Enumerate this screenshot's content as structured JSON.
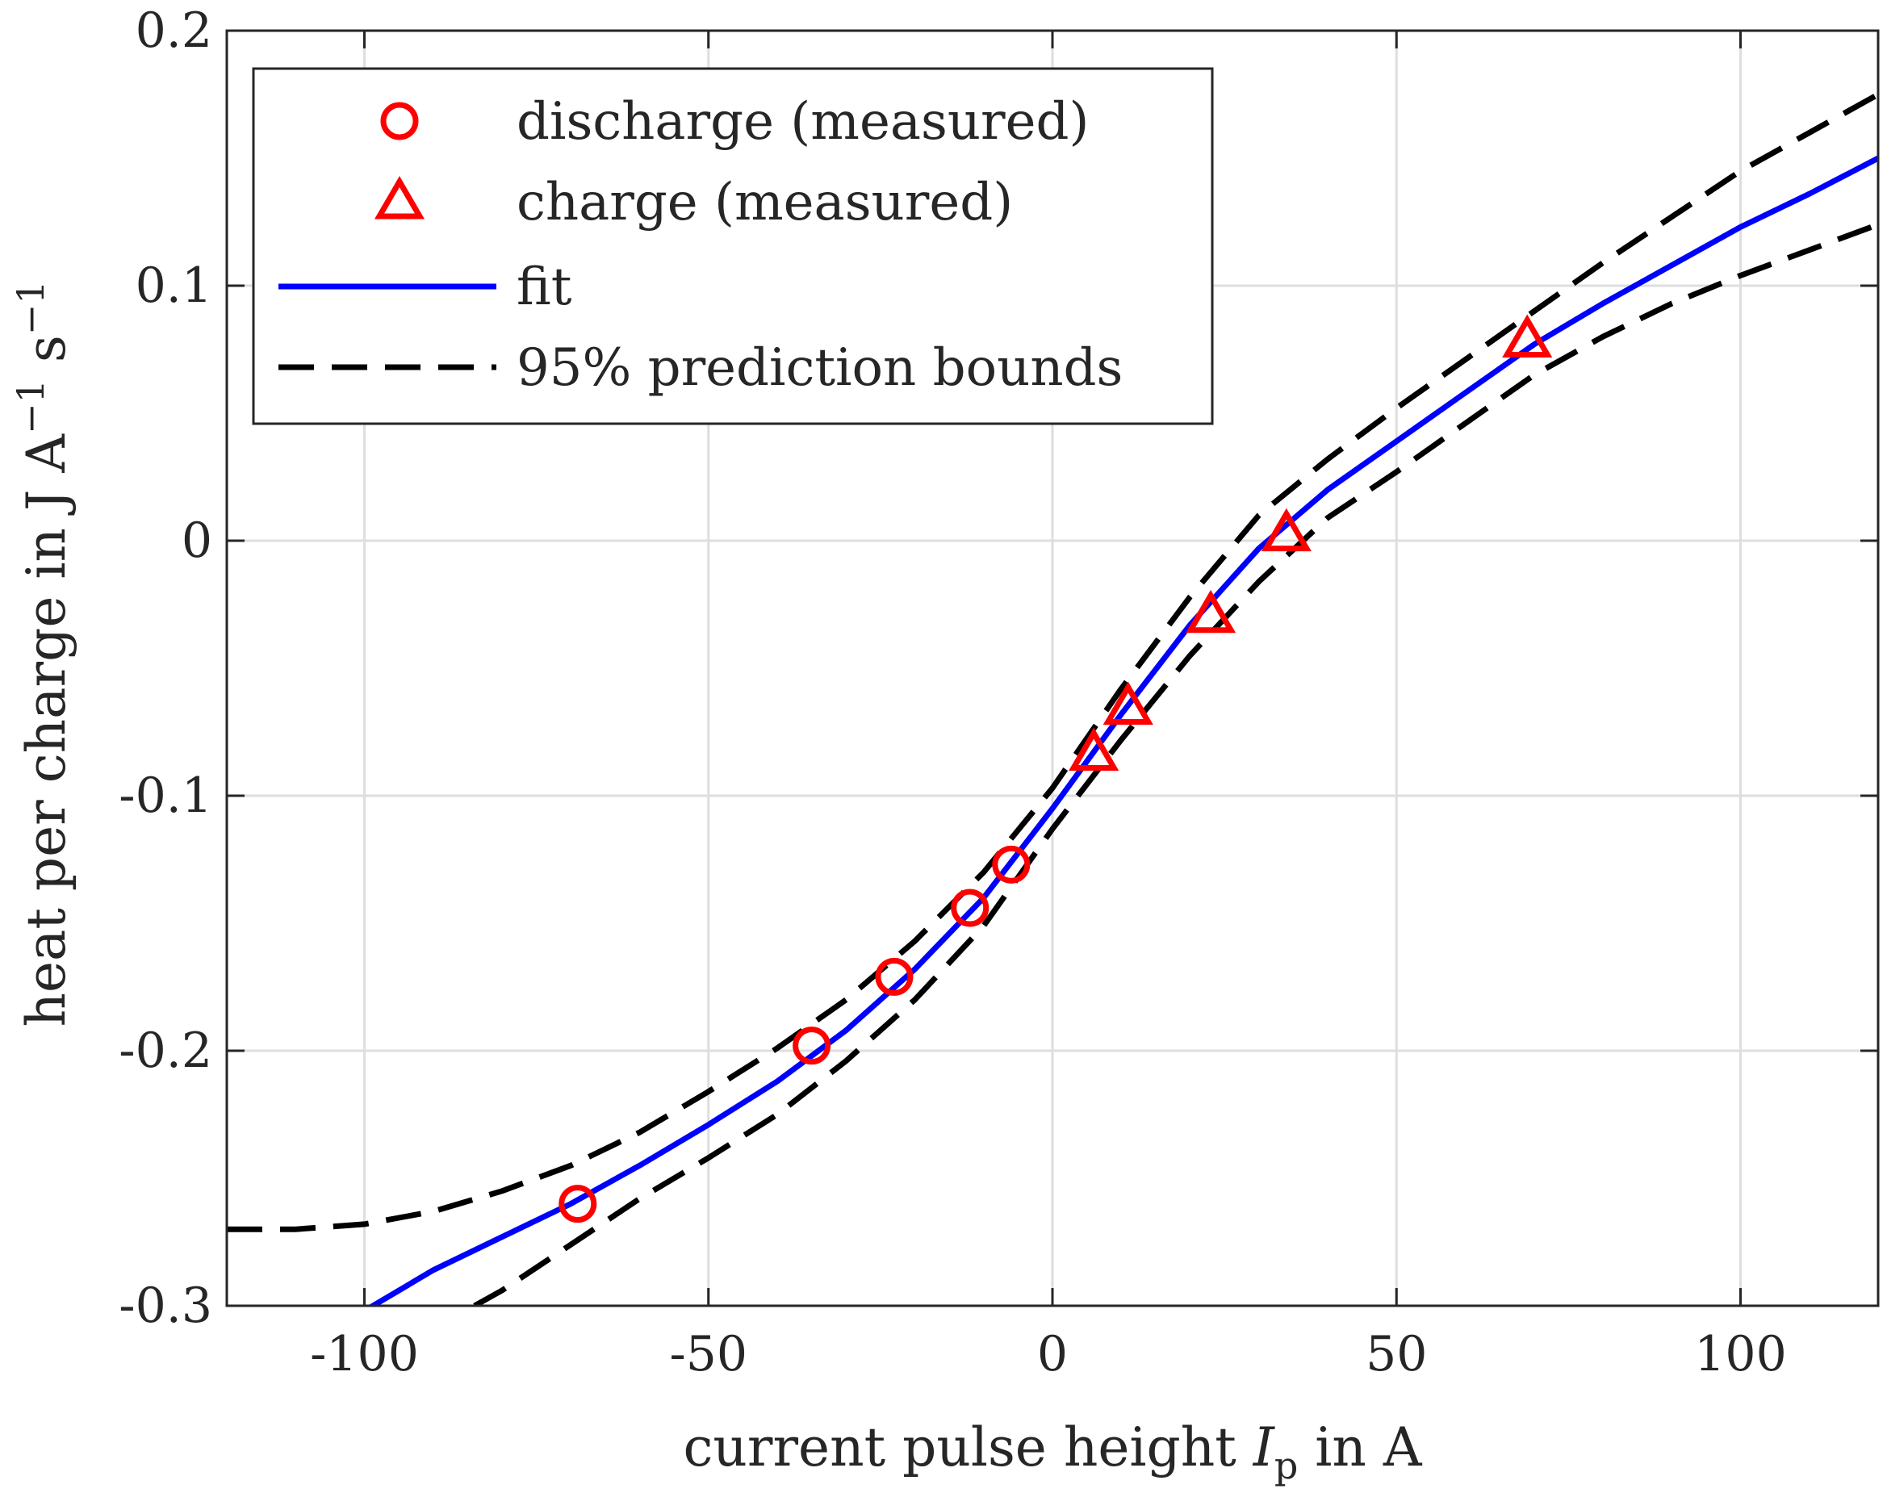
{
  "chart_data": {
    "type": "line",
    "title": "",
    "xlabel": {
      "prefix": "current pulse height ",
      "var": "I",
      "sub": "p",
      "suffix": " in A"
    },
    "ylabel": {
      "prefix": "heat per charge in J A",
      "sup1": "−1",
      "mid": " s",
      "sup2": "−1"
    },
    "xlim": [
      -120,
      120
    ],
    "ylim": [
      -0.3,
      0.2
    ],
    "grid": true,
    "legend_position": "top-left",
    "x_ticks": [
      -100,
      -50,
      0,
      50,
      100
    ],
    "x_tick_labels": [
      "-100",
      "-50",
      "0",
      "50",
      "100"
    ],
    "y_ticks": [
      -0.3,
      -0.2,
      -0.1,
      0,
      0.1,
      0.2
    ],
    "y_tick_labels": [
      "-0.3",
      "-0.2",
      "-0.1",
      "0",
      "0.1",
      "0.2"
    ],
    "series": [
      {
        "name": "discharge (measured)",
        "kind": "scatter",
        "marker": "circle",
        "color": "#ff0000",
        "x": [
          -69,
          -35,
          -23,
          -12,
          -6
        ],
        "y": [
          -0.26,
          -0.198,
          -0.171,
          -0.144,
          -0.127
        ]
      },
      {
        "name": "charge (measured)",
        "kind": "scatter",
        "marker": "triangle",
        "color": "#ff0000",
        "x": [
          6,
          11,
          23,
          34,
          69
        ],
        "y": [
          -0.084,
          -0.066,
          -0.03,
          0.002,
          0.078
        ]
      },
      {
        "name": "fit",
        "kind": "line",
        "style": "solid",
        "color": "#0000ff",
        "x": [
          -100,
          -90,
          -80,
          -70,
          -60,
          -50,
          -40,
          -30,
          -20,
          -10,
          0,
          10,
          20,
          30,
          40,
          50,
          60,
          70,
          80,
          90,
          100,
          110,
          120
        ],
        "y": [
          -0.302,
          -0.286,
          -0.273,
          -0.26,
          -0.245,
          -0.229,
          -0.212,
          -0.192,
          -0.168,
          -0.14,
          -0.105,
          -0.068,
          -0.033,
          -0.003,
          0.02,
          0.039,
          0.058,
          0.077,
          0.093,
          0.108,
          0.123,
          0.136,
          0.15
        ]
      },
      {
        "name": "95% prediction bounds",
        "kind": "line",
        "style": "dashed",
        "color": "#000000",
        "x": [
          -120,
          -110,
          -100,
          -90,
          -80,
          -70,
          -60,
          -50,
          -40,
          -30,
          -20,
          -10,
          0,
          10,
          20,
          30,
          40,
          50,
          60,
          70,
          80,
          90,
          100,
          110,
          120
        ],
        "y": [
          -0.27,
          -0.27,
          -0.268,
          -0.263,
          -0.255,
          -0.245,
          -0.232,
          -0.216,
          -0.199,
          -0.18,
          -0.157,
          -0.13,
          -0.097,
          -0.058,
          -0.022,
          0.01,
          0.032,
          0.052,
          0.071,
          0.09,
          0.109,
          0.127,
          0.145,
          0.16,
          0.175
        ]
      },
      {
        "name": "95% prediction bounds (lower)",
        "kind": "line",
        "style": "dashed",
        "color": "#000000",
        "show_in_legend": false,
        "x": [
          -84,
          -80,
          -70,
          -60,
          -50,
          -40,
          -30,
          -20,
          -10,
          0,
          10,
          20,
          30,
          40,
          50,
          60,
          70,
          80,
          90,
          100,
          110,
          120
        ],
        "y": [
          -0.3,
          -0.294,
          -0.276,
          -0.258,
          -0.242,
          -0.225,
          -0.204,
          -0.18,
          -0.151,
          -0.113,
          -0.078,
          -0.045,
          -0.016,
          0.009,
          0.027,
          0.046,
          0.065,
          0.08,
          0.093,
          0.104,
          0.114,
          0.124
        ]
      }
    ]
  },
  "legend": {
    "items": [
      {
        "label": "discharge (measured)",
        "symbol": "circle"
      },
      {
        "label": "charge (measured)",
        "symbol": "triangle"
      },
      {
        "label": "fit",
        "symbol": "solid-line"
      },
      {
        "label": "95% prediction bounds",
        "symbol": "dashed-line"
      }
    ]
  },
  "colors": {
    "axes": "#262626",
    "grid": "#dedede",
    "markers": "#ff0000",
    "fit": "#0000ff",
    "bounds": "#000000"
  }
}
